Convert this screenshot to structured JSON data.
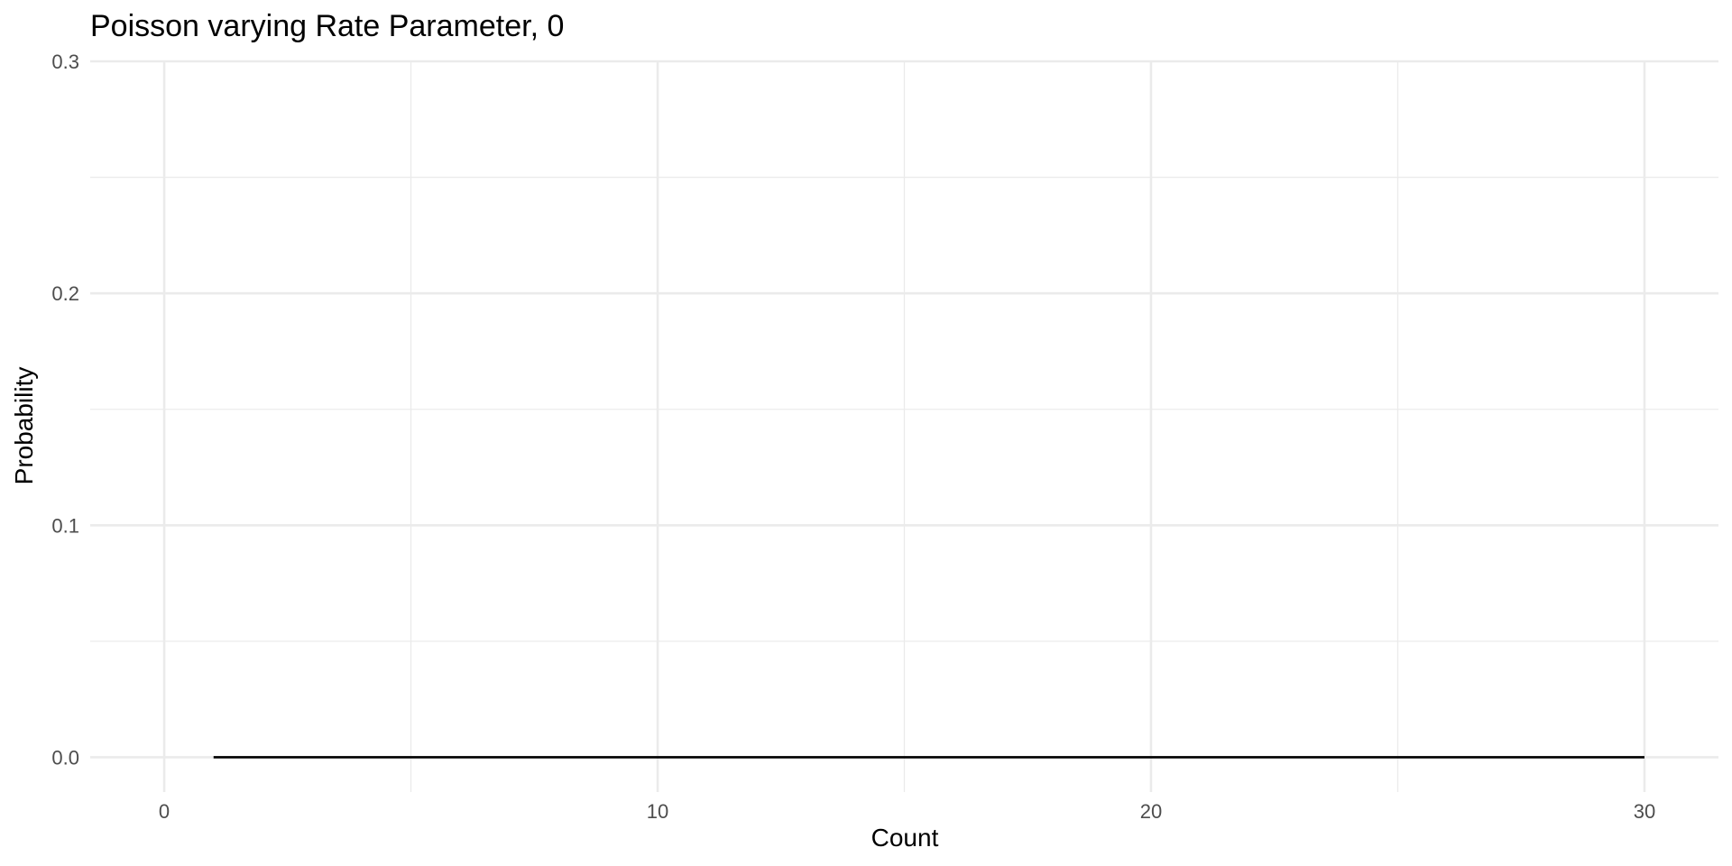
{
  "chart_data": {
    "type": "line",
    "title": "Poisson varying Rate Parameter, 0",
    "xlabel": "Count",
    "ylabel": "Probability",
    "xlim": [
      -1.5,
      31.5
    ],
    "ylim": [
      -0.015,
      0.3
    ],
    "x_ticks": [
      0,
      10,
      20,
      30
    ],
    "x_tick_labels": [
      "0",
      "10",
      "20",
      "30"
    ],
    "x_minor_ticks": [
      5,
      15,
      25
    ],
    "y_ticks": [
      0.0,
      0.1,
      0.2,
      0.3
    ],
    "y_tick_labels": [
      "0.0",
      "0.1",
      "0.2",
      "0.3"
    ],
    "y_minor_ticks": [
      0.05,
      0.15,
      0.25
    ],
    "grid": true,
    "legend": "none",
    "series": [
      {
        "color": "#000000",
        "x": [
          1,
          2,
          3,
          4,
          5,
          6,
          7,
          8,
          9,
          10,
          11,
          12,
          13,
          14,
          15,
          16,
          17,
          18,
          19,
          20,
          21,
          22,
          23,
          24,
          25,
          26,
          27,
          28,
          29,
          30
        ],
        "y": [
          0,
          0,
          0,
          0,
          0,
          0,
          0,
          0,
          0,
          0,
          0,
          0,
          0,
          0,
          0,
          0,
          0,
          0,
          0,
          0,
          0,
          0,
          0,
          0,
          0,
          0,
          0,
          0,
          0,
          0
        ]
      }
    ]
  }
}
